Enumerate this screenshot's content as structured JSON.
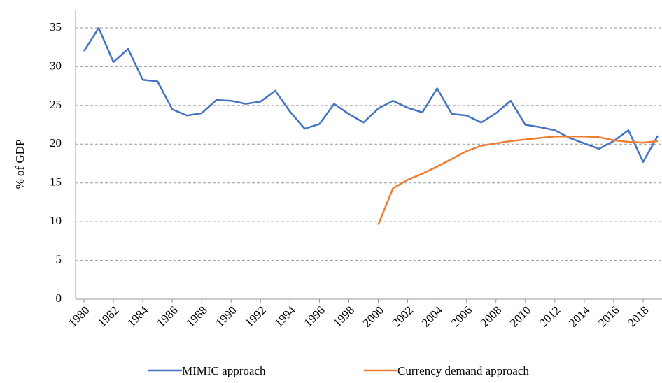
{
  "chart_data": {
    "type": "line",
    "y_label": "% of GDP",
    "x": [
      1980,
      1981,
      1982,
      1983,
      1984,
      1985,
      1986,
      1987,
      1988,
      1989,
      1990,
      1991,
      1992,
      1993,
      1994,
      1995,
      1996,
      1997,
      1998,
      1999,
      2000,
      2001,
      2002,
      2003,
      2004,
      2005,
      2006,
      2007,
      2008,
      2009,
      2010,
      2011,
      2012,
      2013,
      2014,
      2015,
      2016,
      2017,
      2018,
      2019
    ],
    "series": [
      {
        "name": "MIMIC approach",
        "color": "#4472c4",
        "values": [
          32.0,
          35.0,
          30.6,
          32.3,
          28.3,
          28.1,
          24.5,
          23.7,
          24.0,
          25.7,
          25.6,
          25.2,
          25.5,
          26.9,
          24.2,
          22.0,
          22.6,
          25.2,
          23.9,
          22.8,
          24.6,
          25.6,
          24.7,
          24.1,
          27.2,
          23.9,
          23.7,
          22.8,
          24.0,
          25.6,
          22.5,
          22.2,
          21.8,
          20.8,
          20.1,
          19.4,
          20.4,
          21.8,
          17.7,
          21.1
        ]
      },
      {
        "name": "Currency demand approach",
        "color": "#ed7d31",
        "values": [
          null,
          null,
          null,
          null,
          null,
          null,
          null,
          null,
          null,
          null,
          null,
          null,
          null,
          null,
          null,
          null,
          null,
          null,
          null,
          null,
          9.6,
          14.3,
          15.4,
          16.2,
          17.1,
          18.1,
          19.1,
          19.8,
          20.1,
          20.4,
          20.6,
          20.8,
          21.0,
          21.0,
          21.0,
          20.9,
          20.5,
          20.3,
          20.2,
          20.4
        ]
      }
    ],
    "xlim": [
      1980,
      2019
    ],
    "xticks": [
      1980,
      1982,
      1984,
      1986,
      1988,
      1990,
      1992,
      1994,
      1996,
      1998,
      2000,
      2002,
      2004,
      2006,
      2008,
      2010,
      2012,
      2014,
      2016,
      2018
    ],
    "ylim": [
      0,
      35
    ],
    "yticks": [
      0,
      5,
      10,
      15,
      20,
      25,
      30,
      35
    ],
    "grid": true,
    "legend": "bottom"
  }
}
